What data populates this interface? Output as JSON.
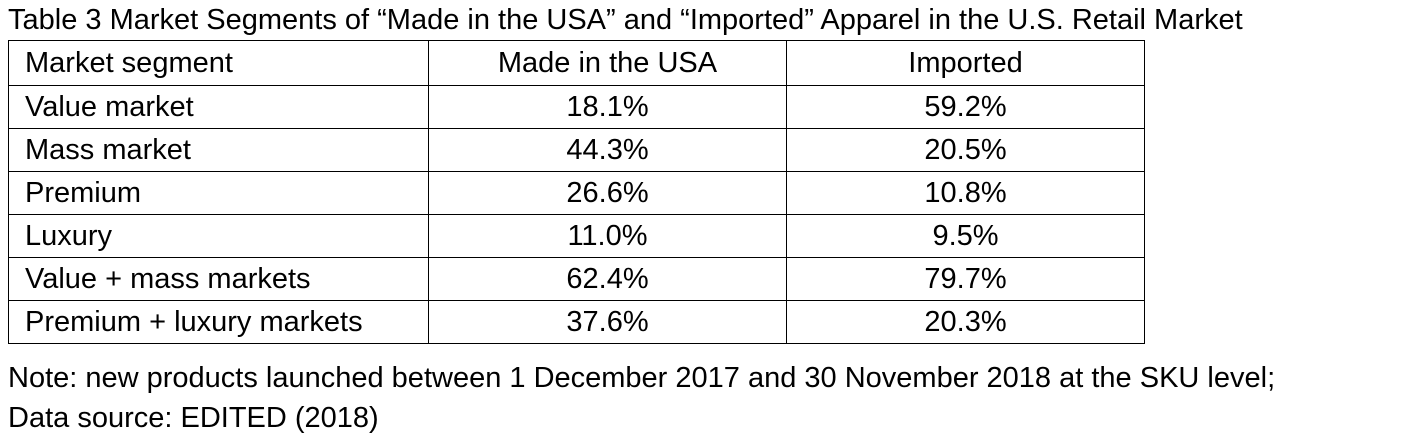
{
  "caption": "Table 3 Market Segments of “Made in the USA” and “Imported” Apparel in the U.S. Retail Market",
  "table": {
    "headers": [
      "Market segment",
      "Made in the USA",
      "Imported"
    ],
    "rows": [
      [
        "Value market",
        "18.1%",
        "59.2%"
      ],
      [
        "Mass market",
        "44.3%",
        "20.5%"
      ],
      [
        "Premium",
        "26.6%",
        "10.8%"
      ],
      [
        "Luxury",
        "11.0%",
        "9.5%"
      ],
      [
        "Value + mass markets",
        "62.4%",
        "79.7%"
      ],
      [
        "Premium + luxury markets",
        "37.6%",
        "20.3%"
      ]
    ]
  },
  "notes": {
    "line1": "Note: new products launched between 1 December 2017 and 30 November 2018 at the SKU level;",
    "line2": "Data source: EDITED (2018)"
  }
}
